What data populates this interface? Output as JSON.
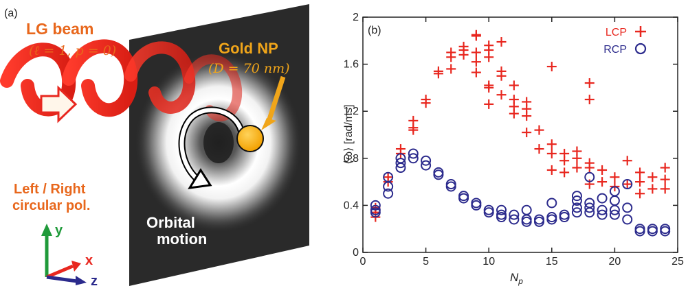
{
  "panel_a": {
    "label": "(a)",
    "beam_title": "LG beam",
    "beam_params": "(ℓ = 1, p = 0)",
    "polarization_line1": "Left / Right",
    "polarization_line2": "circular pol.",
    "np_title": "Gold NP",
    "np_size": "(D = 70 nm)",
    "motion_line1": "Orbital",
    "motion_line2": "motion",
    "axis_y": "y",
    "axis_x": "x",
    "axis_z": "z",
    "colors": {
      "beam": "#e8271f",
      "text_orange": "#e8671c",
      "gold": "#f0a51a",
      "screen": "#2a2a2a",
      "axis_y": "#1f9a3a",
      "axis_x": "#e8271f",
      "axis_z": "#2b2a8c"
    }
  },
  "chart_data": {
    "type": "scatter",
    "panel_label": "(b)",
    "xlabel": "N",
    "xlabel_sub": "p",
    "ylabel": "⟨ω⟩ [rad/ms]",
    "xlim": [
      0,
      25
    ],
    "ylim": [
      0,
      2
    ],
    "x_ticks": [
      "0",
      "5",
      "10",
      "15",
      "20",
      "25"
    ],
    "y_ticks": [
      "0",
      "0.4",
      "0.8",
      "1.2",
      "1.6",
      "2"
    ],
    "legend_position": "top-right",
    "series": [
      {
        "name": "LCP",
        "marker": "plus",
        "color": "#e8271f",
        "points": [
          [
            1,
            0.3
          ],
          [
            1,
            0.34
          ],
          [
            1,
            0.38
          ],
          [
            2,
            0.6
          ],
          [
            2,
            0.64
          ],
          [
            3,
            0.84
          ],
          [
            3,
            0.88
          ],
          [
            4,
            1.04
          ],
          [
            4,
            1.06
          ],
          [
            4,
            1.12
          ],
          [
            5,
            1.27
          ],
          [
            5,
            1.3
          ],
          [
            6,
            1.52
          ],
          [
            6,
            1.54
          ],
          [
            7,
            1.56
          ],
          [
            7,
            1.66
          ],
          [
            7,
            1.7
          ],
          [
            8,
            1.68
          ],
          [
            8,
            1.72
          ],
          [
            8,
            1.75
          ],
          [
            9,
            1.53
          ],
          [
            9,
            1.62
          ],
          [
            9,
            1.7
          ],
          [
            9,
            1.84
          ],
          [
            9,
            1.85
          ],
          [
            10,
            1.26
          ],
          [
            10,
            1.4
          ],
          [
            10,
            1.42
          ],
          [
            10,
            1.66
          ],
          [
            10,
            1.72
          ],
          [
            10,
            1.76
          ],
          [
            11,
            1.34
          ],
          [
            11,
            1.5
          ],
          [
            11,
            1.54
          ],
          [
            11,
            1.79
          ],
          [
            12,
            1.18
          ],
          [
            12,
            1.24
          ],
          [
            12,
            1.3
          ],
          [
            12,
            1.42
          ],
          [
            13,
            1.02
          ],
          [
            13,
            1.16
          ],
          [
            13,
            1.22
          ],
          [
            13,
            1.28
          ],
          [
            14,
            1.04
          ],
          [
            14,
            0.88
          ],
          [
            15,
            0.7
          ],
          [
            15,
            0.84
          ],
          [
            15,
            0.92
          ],
          [
            15,
            1.58
          ],
          [
            16,
            0.68
          ],
          [
            16,
            0.78
          ],
          [
            16,
            0.84
          ],
          [
            17,
            0.72
          ],
          [
            17,
            0.8
          ],
          [
            17,
            0.86
          ],
          [
            18,
            0.58
          ],
          [
            18,
            0.72
          ],
          [
            18,
            0.76
          ],
          [
            18,
            1.3
          ],
          [
            18,
            1.44
          ],
          [
            19,
            0.6
          ],
          [
            19,
            0.7
          ],
          [
            20,
            0.56
          ],
          [
            20,
            0.64
          ],
          [
            21,
            0.58
          ],
          [
            21,
            0.78
          ],
          [
            22,
            0.5
          ],
          [
            22,
            0.6
          ],
          [
            22,
            0.68
          ],
          [
            23,
            0.54
          ],
          [
            23,
            0.64
          ],
          [
            24,
            0.54
          ],
          [
            24,
            0.62
          ],
          [
            24,
            0.72
          ]
        ]
      },
      {
        "name": "RCP",
        "marker": "circle",
        "color": "#2b2a8c",
        "points": [
          [
            1,
            0.34
          ],
          [
            1,
            0.36
          ],
          [
            1,
            0.4
          ],
          [
            2,
            0.5
          ],
          [
            2,
            0.56
          ],
          [
            2,
            0.64
          ],
          [
            3,
            0.72
          ],
          [
            3,
            0.76
          ],
          [
            3,
            0.8
          ],
          [
            4,
            0.8
          ],
          [
            4,
            0.84
          ],
          [
            5,
            0.74
          ],
          [
            5,
            0.78
          ],
          [
            6,
            0.66
          ],
          [
            6,
            0.68
          ],
          [
            7,
            0.56
          ],
          [
            7,
            0.58
          ],
          [
            8,
            0.46
          ],
          [
            8,
            0.48
          ],
          [
            9,
            0.4
          ],
          [
            9,
            0.42
          ],
          [
            10,
            0.34
          ],
          [
            10,
            0.36
          ],
          [
            11,
            0.3
          ],
          [
            11,
            0.32
          ],
          [
            11,
            0.36
          ],
          [
            12,
            0.28
          ],
          [
            12,
            0.32
          ],
          [
            13,
            0.26
          ],
          [
            13,
            0.28
          ],
          [
            13,
            0.36
          ],
          [
            14,
            0.26
          ],
          [
            14,
            0.28
          ],
          [
            15,
            0.28
          ],
          [
            15,
            0.3
          ],
          [
            15,
            0.42
          ],
          [
            16,
            0.3
          ],
          [
            16,
            0.32
          ],
          [
            17,
            0.34
          ],
          [
            17,
            0.38
          ],
          [
            17,
            0.44
          ],
          [
            17,
            0.48
          ],
          [
            18,
            0.34
          ],
          [
            18,
            0.38
          ],
          [
            18,
            0.42
          ],
          [
            18,
            0.64
          ],
          [
            19,
            0.32
          ],
          [
            19,
            0.36
          ],
          [
            19,
            0.46
          ],
          [
            20,
            0.32
          ],
          [
            20,
            0.36
          ],
          [
            20,
            0.44
          ],
          [
            20,
            0.52
          ],
          [
            21,
            0.28
          ],
          [
            21,
            0.38
          ],
          [
            21,
            0.58
          ],
          [
            22,
            0.18
          ],
          [
            22,
            0.2
          ],
          [
            23,
            0.18
          ],
          [
            23,
            0.2
          ],
          [
            24,
            0.18
          ],
          [
            24,
            0.2
          ]
        ]
      }
    ]
  }
}
